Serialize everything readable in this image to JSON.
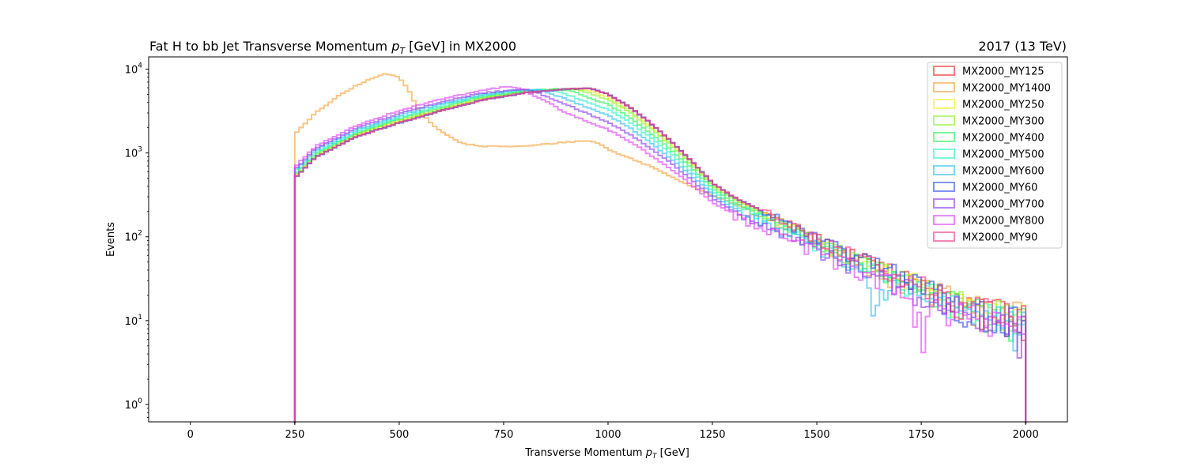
{
  "chart_data": {
    "type": "histogram-step",
    "title": "Fat H to bb Jet Transverse Momentum",
    "title_math": "p",
    "title_math_sub": "T",
    "title_suffix": "[GeV] in MX2000",
    "title_right": "2017 (13 TeV)",
    "xlabel": "Transverse Momentum",
    "xlabel_math": "p",
    "xlabel_math_sub": "T",
    "xlabel_suffix": "[GeV]",
    "ylabel": "Events",
    "xlim": [
      -100,
      2100
    ],
    "ylim": [
      0.62,
      14000
    ],
    "yscale": "log",
    "xticks": [
      0,
      250,
      500,
      750,
      1000,
      1250,
      1500,
      1750,
      2000
    ],
    "yticks": [
      {
        "base": "10",
        "exp": "0",
        "value": 1
      },
      {
        "base": "10",
        "exp": "1",
        "value": 10
      },
      {
        "base": "10",
        "exp": "2",
        "value": 100
      },
      {
        "base": "10",
        "exp": "3",
        "value": 1000
      },
      {
        "base": "10",
        "exp": "4",
        "value": 10000
      }
    ],
    "bins": {
      "start": 250,
      "end": 2000,
      "width": 10
    },
    "legend_position": "upper right",
    "series": [
      {
        "name": "MX2000_MY125",
        "color": "#ee3030",
        "points": [
          [
            250,
            510
          ],
          [
            300,
            900
          ],
          [
            400,
            1600
          ],
          [
            500,
            2300
          ],
          [
            600,
            3200
          ],
          [
            700,
            4300
          ],
          [
            800,
            5200
          ],
          [
            900,
            5800
          ],
          [
            960,
            5900
          ],
          [
            1000,
            5000
          ],
          [
            1050,
            3600
          ],
          [
            1100,
            2300
          ],
          [
            1150,
            1400
          ],
          [
            1200,
            800
          ],
          [
            1250,
            440
          ],
          [
            1300,
            300
          ],
          [
            1400,
            170
          ],
          [
            1500,
            95
          ],
          [
            1600,
            55
          ],
          [
            1700,
            35
          ],
          [
            1800,
            20
          ],
          [
            1900,
            13
          ],
          [
            2000,
            11
          ]
        ]
      },
      {
        "name": "MX2000_MY1400",
        "color": "#f5a23a",
        "points": [
          [
            250,
            1700
          ],
          [
            270,
            2100
          ],
          [
            300,
            3000
          ],
          [
            350,
            4600
          ],
          [
            400,
            6500
          ],
          [
            450,
            8300
          ],
          [
            470,
            8800
          ],
          [
            500,
            8000
          ],
          [
            520,
            6000
          ],
          [
            550,
            3000
          ],
          [
            600,
            1800
          ],
          [
            650,
            1300
          ],
          [
            700,
            1200
          ],
          [
            800,
            1200
          ],
          [
            900,
            1350
          ],
          [
            950,
            1400
          ],
          [
            980,
            1300
          ],
          [
            1000,
            1100
          ],
          [
            1100,
            700
          ],
          [
            1200,
            400
          ],
          [
            1300,
            250
          ],
          [
            1400,
            150
          ],
          [
            1500,
            85
          ],
          [
            1600,
            50
          ],
          [
            1700,
            30
          ],
          [
            1800,
            20
          ],
          [
            1900,
            13
          ],
          [
            2000,
            11
          ]
        ]
      },
      {
        "name": "MX2000_MY250",
        "color": "#f2f22c",
        "points": [
          [
            250,
            520
          ],
          [
            300,
            920
          ],
          [
            400,
            1650
          ],
          [
            500,
            2400
          ],
          [
            600,
            3300
          ],
          [
            700,
            4500
          ],
          [
            800,
            5300
          ],
          [
            900,
            5800
          ],
          [
            950,
            5600
          ],
          [
            1000,
            4600
          ],
          [
            1050,
            3300
          ],
          [
            1100,
            2100
          ],
          [
            1150,
            1300
          ],
          [
            1200,
            760
          ],
          [
            1250,
            420
          ],
          [
            1300,
            290
          ],
          [
            1400,
            165
          ],
          [
            1500,
            92
          ],
          [
            1600,
            53
          ],
          [
            1700,
            34
          ],
          [
            1800,
            20
          ],
          [
            1900,
            13
          ],
          [
            2000,
            10
          ]
        ]
      },
      {
        "name": "MX2000_MY300",
        "color": "#8ef22c",
        "points": [
          [
            250,
            530
          ],
          [
            300,
            940
          ],
          [
            400,
            1700
          ],
          [
            500,
            2450
          ],
          [
            600,
            3350
          ],
          [
            700,
            4550
          ],
          [
            800,
            5350
          ],
          [
            900,
            5800
          ],
          [
            940,
            5500
          ],
          [
            1000,
            4300
          ],
          [
            1050,
            3100
          ],
          [
            1100,
            2000
          ],
          [
            1150,
            1250
          ],
          [
            1200,
            730
          ],
          [
            1250,
            410
          ],
          [
            1300,
            280
          ],
          [
            1400,
            160
          ],
          [
            1500,
            90
          ],
          [
            1600,
            52
          ],
          [
            1700,
            33
          ],
          [
            1800,
            19
          ],
          [
            1900,
            13
          ],
          [
            2000,
            10
          ]
        ]
      },
      {
        "name": "MX2000_MY400",
        "color": "#2cf25c",
        "points": [
          [
            250,
            550
          ],
          [
            300,
            980
          ],
          [
            400,
            1750
          ],
          [
            500,
            2550
          ],
          [
            600,
            3500
          ],
          [
            700,
            4700
          ],
          [
            800,
            5500
          ],
          [
            880,
            5800
          ],
          [
            920,
            5300
          ],
          [
            1000,
            3800
          ],
          [
            1050,
            2700
          ],
          [
            1100,
            1750
          ],
          [
            1150,
            1100
          ],
          [
            1200,
            660
          ],
          [
            1250,
            380
          ],
          [
            1300,
            260
          ],
          [
            1400,
            150
          ],
          [
            1500,
            85
          ],
          [
            1600,
            50
          ],
          [
            1700,
            32
          ],
          [
            1800,
            19
          ],
          [
            1900,
            12
          ],
          [
            2000,
            9
          ]
        ]
      },
      {
        "name": "MX2000_MY500",
        "color": "#2cf2c8",
        "points": [
          [
            250,
            570
          ],
          [
            300,
            1020
          ],
          [
            400,
            1820
          ],
          [
            500,
            2650
          ],
          [
            600,
            3650
          ],
          [
            700,
            4850
          ],
          [
            800,
            5600
          ],
          [
            860,
            5700
          ],
          [
            900,
            5000
          ],
          [
            1000,
            3300
          ],
          [
            1050,
            2400
          ],
          [
            1100,
            1550
          ],
          [
            1150,
            980
          ],
          [
            1200,
            600
          ],
          [
            1250,
            350
          ],
          [
            1300,
            240
          ],
          [
            1400,
            140
          ],
          [
            1500,
            80
          ],
          [
            1600,
            47
          ],
          [
            1700,
            30
          ],
          [
            1800,
            18
          ],
          [
            1900,
            12
          ],
          [
            2000,
            9
          ]
        ]
      },
      {
        "name": "MX2000_MY600",
        "color": "#2cc0f2",
        "points": [
          [
            250,
            600
          ],
          [
            300,
            1080
          ],
          [
            400,
            1900
          ],
          [
            500,
            2800
          ],
          [
            600,
            3850
          ],
          [
            700,
            5000
          ],
          [
            800,
            5700
          ],
          [
            840,
            5600
          ],
          [
            900,
            4400
          ],
          [
            1000,
            2800
          ],
          [
            1050,
            2050
          ],
          [
            1100,
            1350
          ],
          [
            1150,
            870
          ],
          [
            1200,
            540
          ],
          [
            1250,
            320
          ],
          [
            1300,
            220
          ],
          [
            1400,
            130
          ],
          [
            1500,
            75
          ],
          [
            1600,
            44
          ],
          [
            1640,
            15
          ],
          [
            1700,
            28
          ],
          [
            1800,
            17
          ],
          [
            1900,
            11
          ],
          [
            2000,
            8
          ]
        ]
      },
      {
        "name": "MX2000_MY60",
        "color": "#3050ee",
        "points": [
          [
            250,
            500
          ],
          [
            300,
            890
          ],
          [
            400,
            1580
          ],
          [
            500,
            2280
          ],
          [
            600,
            3180
          ],
          [
            700,
            4280
          ],
          [
            800,
            5180
          ],
          [
            900,
            5780
          ],
          [
            960,
            5900
          ],
          [
            1000,
            5000
          ],
          [
            1050,
            3600
          ],
          [
            1100,
            2300
          ],
          [
            1150,
            1400
          ],
          [
            1200,
            800
          ],
          [
            1250,
            440
          ],
          [
            1300,
            300
          ],
          [
            1400,
            170
          ],
          [
            1500,
            95
          ],
          [
            1600,
            55
          ],
          [
            1700,
            35
          ],
          [
            1800,
            20
          ],
          [
            1850,
            8
          ],
          [
            1900,
            13
          ],
          [
            2000,
            10
          ]
        ]
      },
      {
        "name": "MX2000_MY700",
        "color": "#8a3cee",
        "points": [
          [
            250,
            630
          ],
          [
            300,
            1130
          ],
          [
            400,
            2000
          ],
          [
            500,
            2950
          ],
          [
            600,
            4050
          ],
          [
            700,
            5200
          ],
          [
            800,
            5800
          ],
          [
            820,
            5500
          ],
          [
            900,
            3800
          ],
          [
            1000,
            2300
          ],
          [
            1050,
            1700
          ],
          [
            1100,
            1150
          ],
          [
            1150,
            760
          ],
          [
            1200,
            480
          ],
          [
            1250,
            290
          ],
          [
            1300,
            200
          ],
          [
            1400,
            120
          ],
          [
            1500,
            70
          ],
          [
            1600,
            42
          ],
          [
            1700,
            26
          ],
          [
            1800,
            16
          ],
          [
            1900,
            10
          ],
          [
            2000,
            7
          ]
        ]
      },
      {
        "name": "MX2000_MY800",
        "color": "#e040f5",
        "points": [
          [
            250,
            680
          ],
          [
            300,
            1200
          ],
          [
            400,
            2150
          ],
          [
            500,
            3200
          ],
          [
            600,
            4400
          ],
          [
            700,
            5600
          ],
          [
            760,
            6200
          ],
          [
            790,
            5800
          ],
          [
            850,
            4200
          ],
          [
            900,
            3000
          ],
          [
            1000,
            1900
          ],
          [
            1050,
            1400
          ],
          [
            1100,
            960
          ],
          [
            1150,
            650
          ],
          [
            1200,
            420
          ],
          [
            1250,
            260
          ],
          [
            1300,
            185
          ],
          [
            1400,
            110
          ],
          [
            1500,
            65
          ],
          [
            1600,
            40
          ],
          [
            1700,
            25
          ],
          [
            1750,
            8
          ],
          [
            1800,
            15
          ],
          [
            1900,
            9
          ],
          [
            2000,
            7
          ]
        ]
      },
      {
        "name": "MX2000_MY90",
        "color": "#f03c8c",
        "points": [
          [
            250,
            500
          ],
          [
            300,
            890
          ],
          [
            400,
            1590
          ],
          [
            500,
            2290
          ],
          [
            600,
            3190
          ],
          [
            700,
            4290
          ],
          [
            800,
            5190
          ],
          [
            900,
            5790
          ],
          [
            960,
            5900
          ],
          [
            1000,
            5000
          ],
          [
            1050,
            3600
          ],
          [
            1100,
            2300
          ],
          [
            1150,
            1400
          ],
          [
            1200,
            800
          ],
          [
            1250,
            440
          ],
          [
            1300,
            300
          ],
          [
            1400,
            170
          ],
          [
            1500,
            95
          ],
          [
            1600,
            55
          ],
          [
            1700,
            35
          ],
          [
            1800,
            20
          ],
          [
            1900,
            13
          ],
          [
            2000,
            10
          ]
        ]
      }
    ]
  }
}
